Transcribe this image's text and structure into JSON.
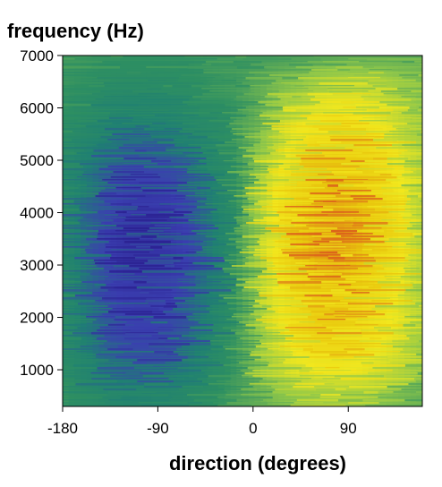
{
  "chart_data": {
    "type": "heatmap",
    "title": "",
    "xlabel": "direction  (degrees)",
    "ylabel": "frequency  (Hz)",
    "xlim": [
      -180,
      160
    ],
    "ylim": [
      300,
      7000
    ],
    "x_ticks": [
      -180,
      -90,
      0,
      90
    ],
    "x_tick_labels": [
      "-180",
      "-90",
      "0",
      "90"
    ],
    "y_ticks": [
      1000,
      2000,
      3000,
      4000,
      5000,
      6000,
      7000
    ],
    "y_tick_labels": [
      "1000",
      "2000",
      "3000",
      "4000",
      "5000",
      "6000",
      "7000"
    ],
    "colormap": [
      "#2a1f8f",
      "#3b3fb0",
      "#1f7f73",
      "#2e8f62",
      "#8fc74a",
      "#f2e81e",
      "#e8c60d",
      "#d9531e"
    ],
    "grid": false,
    "legend": "none",
    "columns_deg": [
      -180,
      -160,
      -140,
      -120,
      -100,
      -80,
      -60,
      -40,
      -20,
      0,
      20,
      40,
      60,
      80,
      100,
      120,
      140,
      160
    ],
    "rows_hz": [
      7000,
      6500,
      6000,
      5500,
      5000,
      4500,
      4000,
      3500,
      3000,
      2500,
      2000,
      1500,
      1000,
      500
    ],
    "values": [
      [
        0.45,
        0.45,
        0.44,
        0.44,
        0.44,
        0.44,
        0.44,
        0.45,
        0.45,
        0.46,
        0.46,
        0.47,
        0.48,
        0.49,
        0.5,
        0.5,
        0.5,
        0.5
      ],
      [
        0.45,
        0.43,
        0.41,
        0.4,
        0.4,
        0.41,
        0.42,
        0.44,
        0.45,
        0.48,
        0.52,
        0.56,
        0.6,
        0.63,
        0.64,
        0.62,
        0.58,
        0.55
      ],
      [
        0.44,
        0.4,
        0.36,
        0.34,
        0.34,
        0.35,
        0.38,
        0.41,
        0.44,
        0.5,
        0.58,
        0.65,
        0.69,
        0.71,
        0.7,
        0.67,
        0.62,
        0.57
      ],
      [
        0.43,
        0.36,
        0.3,
        0.27,
        0.27,
        0.29,
        0.33,
        0.38,
        0.43,
        0.52,
        0.62,
        0.71,
        0.76,
        0.78,
        0.77,
        0.73,
        0.66,
        0.59
      ],
      [
        0.42,
        0.32,
        0.24,
        0.2,
        0.19,
        0.2,
        0.25,
        0.33,
        0.41,
        0.54,
        0.67,
        0.77,
        0.82,
        0.84,
        0.82,
        0.78,
        0.7,
        0.61
      ],
      [
        0.41,
        0.28,
        0.19,
        0.14,
        0.12,
        0.14,
        0.2,
        0.29,
        0.4,
        0.56,
        0.7,
        0.8,
        0.85,
        0.87,
        0.85,
        0.8,
        0.72,
        0.62
      ],
      [
        0.4,
        0.25,
        0.15,
        0.1,
        0.08,
        0.1,
        0.16,
        0.26,
        0.39,
        0.57,
        0.72,
        0.82,
        0.88,
        0.9,
        0.87,
        0.82,
        0.73,
        0.63
      ],
      [
        0.4,
        0.24,
        0.14,
        0.09,
        0.07,
        0.09,
        0.15,
        0.26,
        0.39,
        0.57,
        0.73,
        0.84,
        0.9,
        0.92,
        0.88,
        0.82,
        0.73,
        0.63
      ],
      [
        0.4,
        0.25,
        0.15,
        0.1,
        0.09,
        0.1,
        0.16,
        0.27,
        0.4,
        0.57,
        0.72,
        0.82,
        0.88,
        0.9,
        0.86,
        0.8,
        0.72,
        0.62
      ],
      [
        0.41,
        0.27,
        0.17,
        0.12,
        0.11,
        0.13,
        0.19,
        0.29,
        0.41,
        0.56,
        0.7,
        0.8,
        0.85,
        0.86,
        0.83,
        0.77,
        0.7,
        0.61
      ],
      [
        0.41,
        0.28,
        0.19,
        0.14,
        0.13,
        0.15,
        0.21,
        0.31,
        0.42,
        0.55,
        0.68,
        0.77,
        0.82,
        0.83,
        0.8,
        0.75,
        0.68,
        0.6
      ],
      [
        0.42,
        0.3,
        0.21,
        0.17,
        0.16,
        0.18,
        0.24,
        0.33,
        0.43,
        0.54,
        0.65,
        0.73,
        0.78,
        0.79,
        0.77,
        0.72,
        0.66,
        0.59
      ],
      [
        0.43,
        0.33,
        0.26,
        0.22,
        0.21,
        0.23,
        0.28,
        0.36,
        0.44,
        0.53,
        0.62,
        0.68,
        0.72,
        0.73,
        0.71,
        0.67,
        0.62,
        0.56
      ],
      [
        0.45,
        0.4,
        0.36,
        0.34,
        0.34,
        0.35,
        0.38,
        0.42,
        0.46,
        0.5,
        0.55,
        0.58,
        0.6,
        0.61,
        0.6,
        0.57,
        0.54,
        0.51
      ]
    ]
  }
}
